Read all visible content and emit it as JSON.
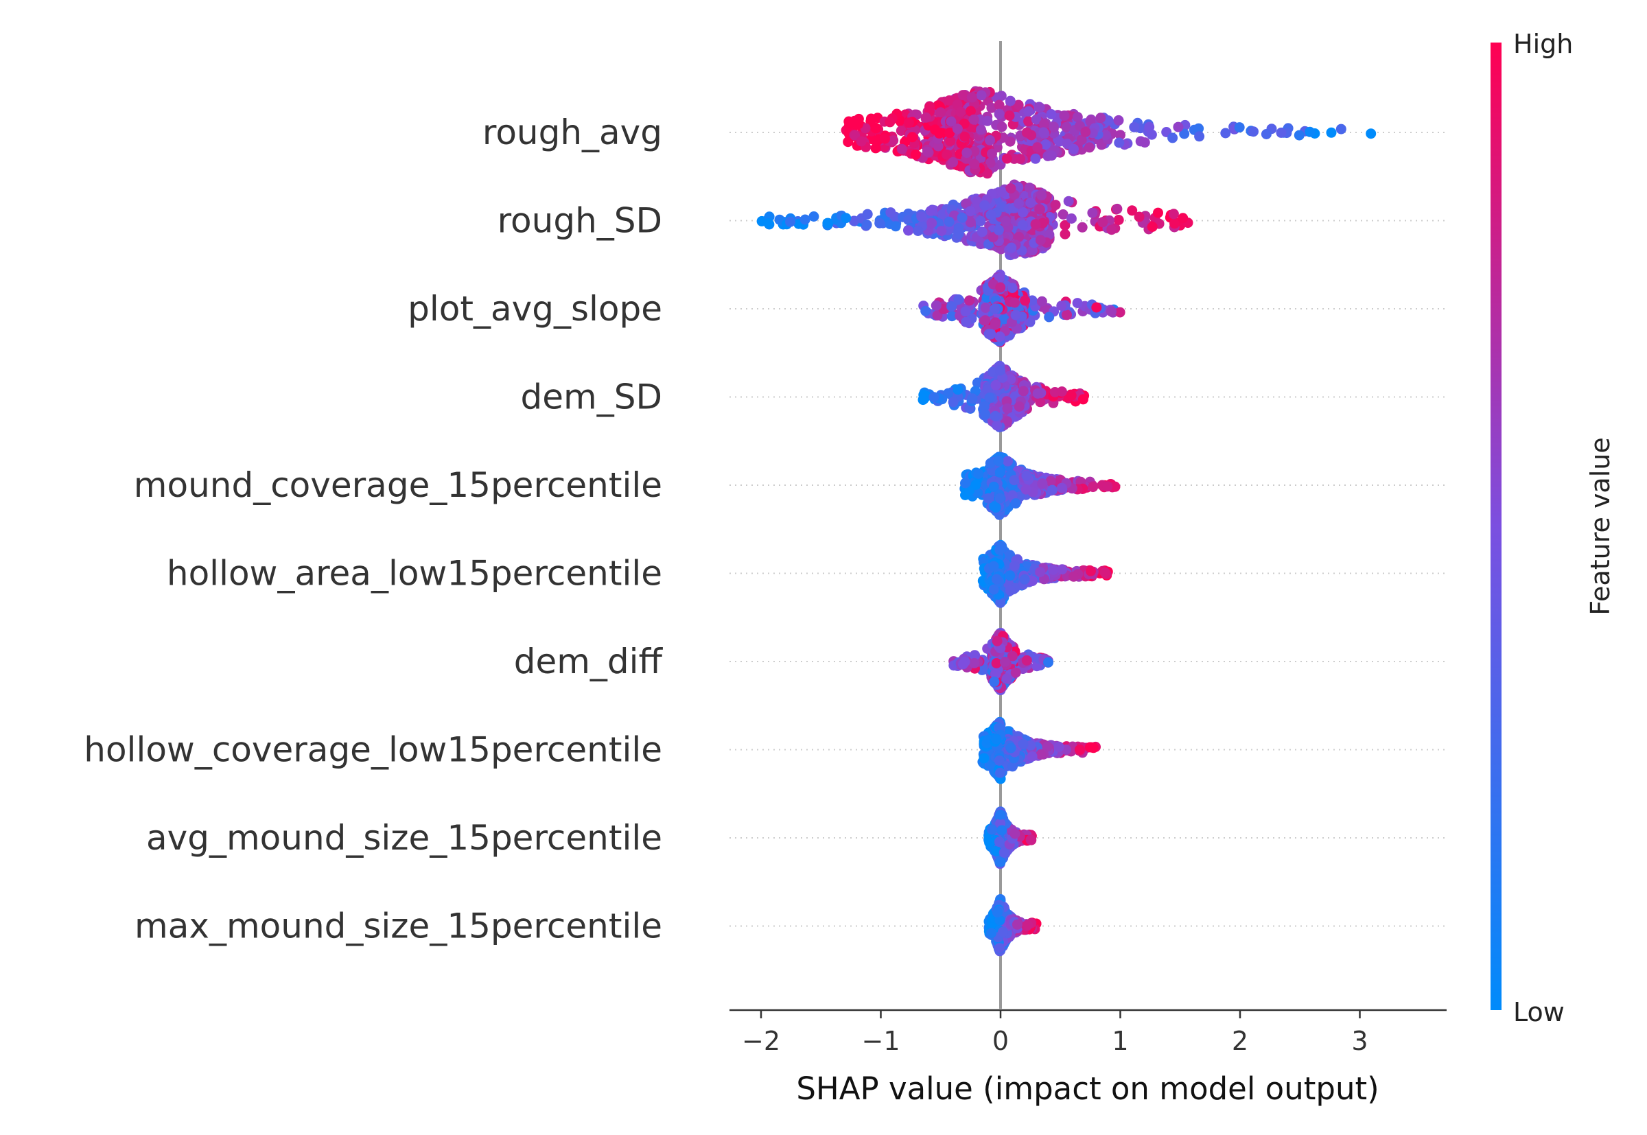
{
  "chart_data": {
    "type": "scatter",
    "subtype": "shap-beeswarm",
    "title": "",
    "xlabel": "SHAP value (impact on model output)",
    "ylabel": "",
    "xlim": [
      -2.3,
      3.7
    ],
    "xticks": [
      -2,
      -1,
      0,
      1,
      2,
      3
    ],
    "xtick_labels": [
      "−2",
      "−1",
      "0",
      "1",
      "2",
      "3"
    ],
    "zero_line": 0,
    "grid": false,
    "colorbar": {
      "label": "Feature value",
      "high_label": "High",
      "low_label": "Low",
      "low_color": "#008bfb",
      "high_color": "#ff0052",
      "placement": "right"
    },
    "features": [
      {
        "name": "rough_avg",
        "min": -1.3,
        "max": 3.45,
        "q_low": -0.95,
        "median": -0.15,
        "q_high": 0.9,
        "max_height": 0.6,
        "high_side": "left"
      },
      {
        "name": "rough_SD",
        "min": -2.0,
        "max": 1.65,
        "q_low": -0.8,
        "median": 0.15,
        "q_high": 0.4,
        "max_height": 0.5,
        "high_side": "right"
      },
      {
        "name": "plot_avg_slope",
        "min": -0.65,
        "max": 1.0,
        "q_low": -0.15,
        "median": 0.0,
        "q_high": 0.2,
        "max_height": 0.45,
        "high_side": "mixed"
      },
      {
        "name": "dem_SD",
        "min": -0.65,
        "max": 0.72,
        "q_low": -0.15,
        "median": 0.0,
        "q_high": 0.2,
        "max_height": 0.42,
        "high_side": "right"
      },
      {
        "name": "mound_coverage_15percentile",
        "min": -0.3,
        "max": 1.0,
        "q_low": -0.1,
        "median": 0.0,
        "q_high": 0.5,
        "max_height": 0.4,
        "high_side": "right"
      },
      {
        "name": "hollow_area_low15percentile",
        "min": -0.15,
        "max": 0.9,
        "q_low": -0.08,
        "median": 0.0,
        "q_high": 0.45,
        "max_height": 0.38,
        "high_side": "right"
      },
      {
        "name": "dem_diff",
        "min": -0.4,
        "max": 0.4,
        "q_low": -0.08,
        "median": 0.0,
        "q_high": 0.1,
        "max_height": 0.38,
        "high_side": "mixed"
      },
      {
        "name": "hollow_coverage_low15percentile",
        "min": -0.15,
        "max": 0.8,
        "q_low": -0.07,
        "median": 0.0,
        "q_high": 0.4,
        "max_height": 0.38,
        "high_side": "right"
      },
      {
        "name": "avg_mound_size_15percentile",
        "min": -0.1,
        "max": 0.27,
        "q_low": -0.04,
        "median": 0.0,
        "q_high": 0.12,
        "max_height": 0.35,
        "high_side": "right"
      },
      {
        "name": "max_mound_size_15percentile",
        "min": -0.1,
        "max": 0.3,
        "q_low": -0.04,
        "median": 0.0,
        "q_high": 0.12,
        "max_height": 0.35,
        "high_side": "right"
      }
    ]
  }
}
